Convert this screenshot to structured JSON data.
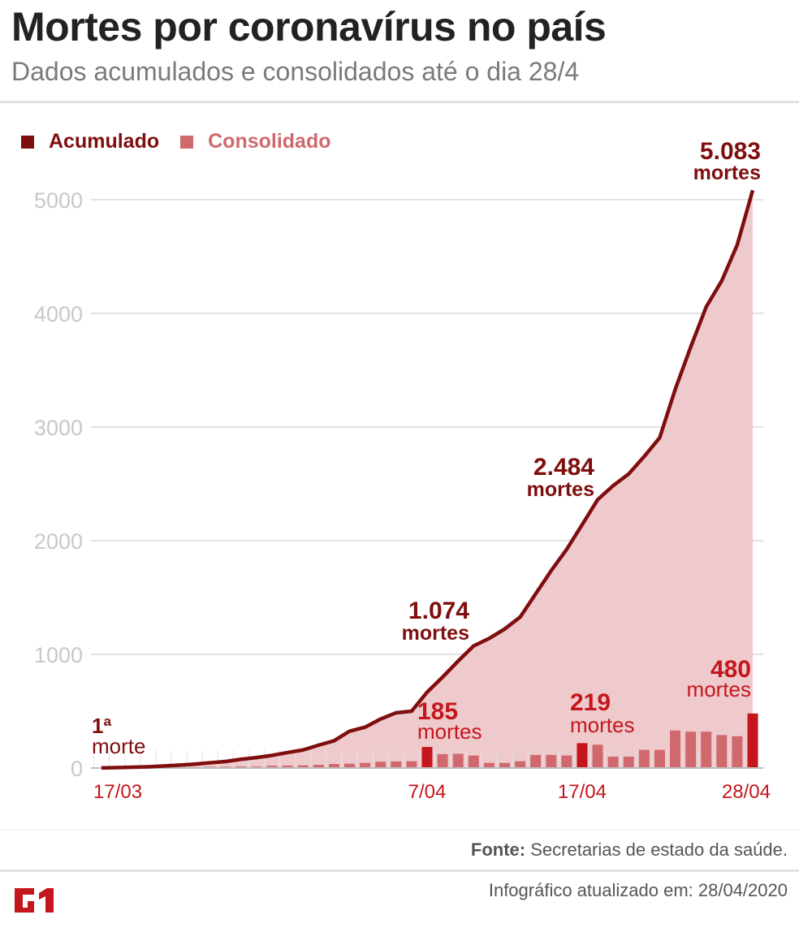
{
  "header": {
    "title": "Mortes por coronavírus no país",
    "subtitle": "Dados acumulados e consolidados até o dia 28/4"
  },
  "legend": [
    {
      "label": "Acumulado",
      "color": "#7f0e0e"
    },
    {
      "label": "Consolidado",
      "color": "#d0696d"
    }
  ],
  "footer": {
    "source_label": "Fonte:",
    "source_text": "Secretarias de estado da saúde.",
    "updated_text": "Infográfico atualizado em: 28/04/2020",
    "logo": "G1"
  },
  "colors": {
    "line": "#7f0e0e",
    "area": "#efcacc",
    "bar": "#d0696d",
    "bar_highlight": "#c4161c",
    "grid": "#d8d8d8",
    "tick_text": "#c8c8c8",
    "x_tick_text": "#c4161c"
  },
  "chart_data": {
    "type": "line+bar",
    "title": "Mortes por coronavírus no país",
    "subtitle": "Dados acumulados e consolidados até o dia 28/4",
    "xlabel": "",
    "ylabel": "",
    "ylim": [
      0,
      5000
    ],
    "y_ticks": [
      0,
      1000,
      2000,
      3000,
      4000,
      5000
    ],
    "x_tick_labels": [
      {
        "index": 0,
        "label": "17/03"
      },
      {
        "index": 21,
        "label": "7/04"
      },
      {
        "index": 31,
        "label": "17/04"
      },
      {
        "index": 42,
        "label": "28/04"
      }
    ],
    "grid": true,
    "legend_position": "top-left",
    "series": [
      {
        "name": "Acumulado",
        "type": "area-line",
        "values": [
          1,
          4,
          7,
          11,
          18,
          25,
          34,
          46,
          57,
          77,
          92,
          111,
          136,
          159,
          201,
          240,
          324,
          359,
          431,
          486,
          500,
          667,
          800,
          941,
          1074,
          1140,
          1223,
          1328,
          1532,
          1736,
          1924,
          2141,
          2361,
          2484,
          2587,
          2741,
          2906,
          3331,
          3704,
          4057,
          4286,
          4603,
          5083
        ]
      },
      {
        "name": "Consolidado",
        "type": "bar",
        "values": [
          0,
          1,
          3,
          4,
          5,
          6,
          8,
          10,
          11,
          14,
          13,
          20,
          21,
          23,
          28,
          35,
          38,
          45,
          55,
          58,
          60,
          185,
          122,
          125,
          110,
          45,
          45,
          60,
          115,
          115,
          110,
          219,
          205,
          100,
          100,
          160,
          160,
          330,
          320,
          320,
          290,
          280,
          480
        ],
        "highlight_indices": [
          21,
          31,
          42
        ]
      }
    ],
    "annotations": [
      {
        "index": 0,
        "value_text": "1ª",
        "unit_text": "morte",
        "series": "Acumulado"
      },
      {
        "index": 24,
        "value_text": "1.074",
        "unit_text": "mortes",
        "series": "Acumulado"
      },
      {
        "index": 33,
        "value_text": "2.484",
        "unit_text": "mortes",
        "series": "Acumulado"
      },
      {
        "index": 42,
        "value_text": "5.083",
        "unit_text": "mortes",
        "series": "Acumulado"
      },
      {
        "index": 21,
        "value_text": "185",
        "unit_text": "mortes",
        "series": "Consolidado"
      },
      {
        "index": 31,
        "value_text": "219",
        "unit_text": "mortes",
        "series": "Consolidado"
      },
      {
        "index": 42,
        "value_text": "480",
        "unit_text": "mortes",
        "series": "Consolidado"
      }
    ]
  }
}
